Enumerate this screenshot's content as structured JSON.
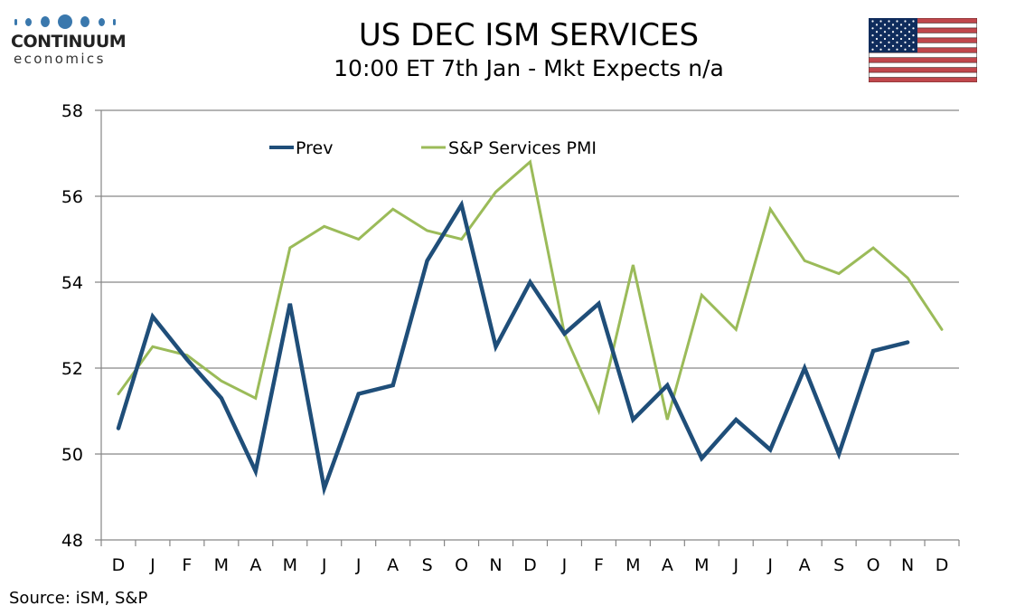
{
  "logo": {
    "name": "CONTINUUM",
    "sub": "economics",
    "color": "#3a78ad"
  },
  "flag": {
    "icon": "us-flag-icon"
  },
  "source": "Source: iSM, S&P",
  "chart_data": {
    "type": "line",
    "title": "US DEC ISM SERVICES",
    "subtitle": "10:00 ET 7th Jan - Mkt Expects n/a",
    "xlabel": "",
    "ylabel": "",
    "categories": [
      "D",
      "J",
      "F",
      "M",
      "A",
      "M",
      "J",
      "J",
      "A",
      "S",
      "O",
      "N",
      "D",
      "J",
      "F",
      "M",
      "A",
      "M",
      "J",
      "J",
      "A",
      "S",
      "O",
      "N",
      "D"
    ],
    "ylim": [
      48,
      58
    ],
    "yticks": [
      48,
      50,
      52,
      54,
      56,
      58
    ],
    "grid": true,
    "legend_position": "top-center",
    "series": [
      {
        "name": "Prev",
        "color": "#1f4e79",
        "values": [
          50.6,
          53.2,
          52.2,
          51.3,
          49.6,
          53.5,
          49.2,
          51.4,
          51.6,
          54.5,
          55.8,
          52.5,
          54.0,
          52.8,
          53.5,
          50.8,
          51.6,
          49.9,
          50.8,
          50.1,
          52.0,
          50.0,
          52.4,
          52.6,
          null
        ]
      },
      {
        "name": "S&P Services PMI",
        "color": "#9bbb59",
        "values": [
          51.4,
          52.5,
          52.3,
          51.7,
          51.3,
          54.8,
          55.3,
          55.0,
          55.7,
          55.2,
          55.0,
          56.1,
          56.8,
          52.8,
          51.0,
          54.4,
          50.8,
          53.7,
          52.9,
          55.7,
          54.5,
          54.2,
          54.8,
          54.1,
          52.9
        ]
      }
    ]
  }
}
